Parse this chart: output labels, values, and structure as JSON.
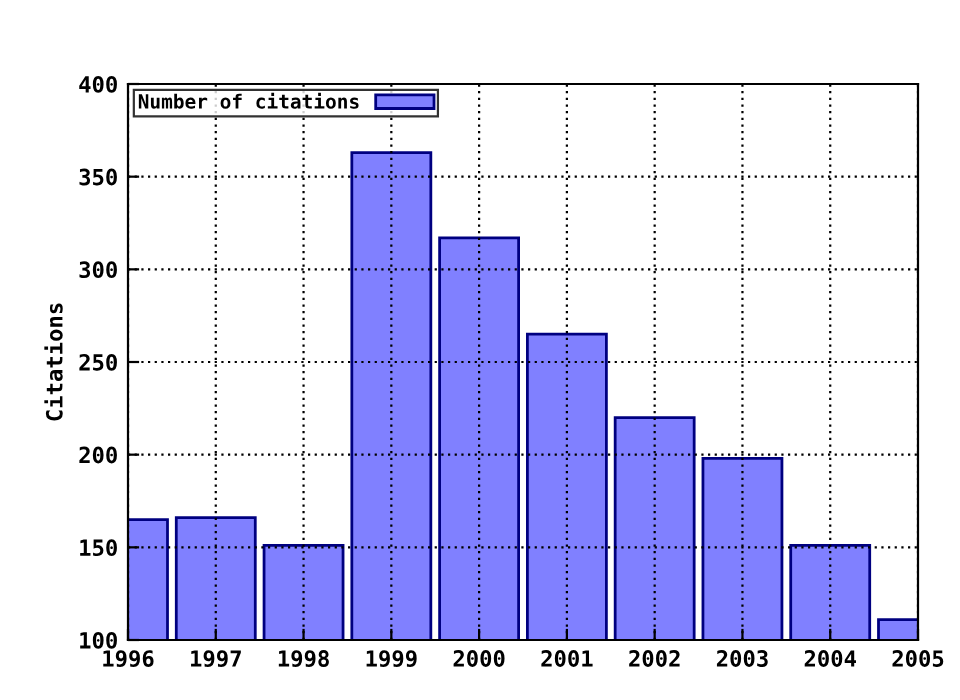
{
  "chart_data": {
    "type": "bar",
    "ylabel": "Citations",
    "x": [
      1996,
      1997,
      1998,
      1999,
      2000,
      2001,
      2002,
      2003,
      2004,
      2005
    ],
    "series": [
      {
        "name": "Number of citations",
        "color": "#8080ff",
        "values": [
          165,
          166,
          151,
          363,
          317,
          265,
          220,
          198,
          151,
          111
        ]
      }
    ],
    "xlim": [
      1996,
      2005
    ],
    "xticks": [
      1996,
      1997,
      1998,
      1999,
      2000,
      2001,
      2002,
      2003,
      2004,
      2005
    ],
    "ylim": [
      100,
      400
    ],
    "yticks": [
      100,
      150,
      200,
      250,
      300,
      350,
      400
    ],
    "grid": true,
    "legend": "top left"
  }
}
